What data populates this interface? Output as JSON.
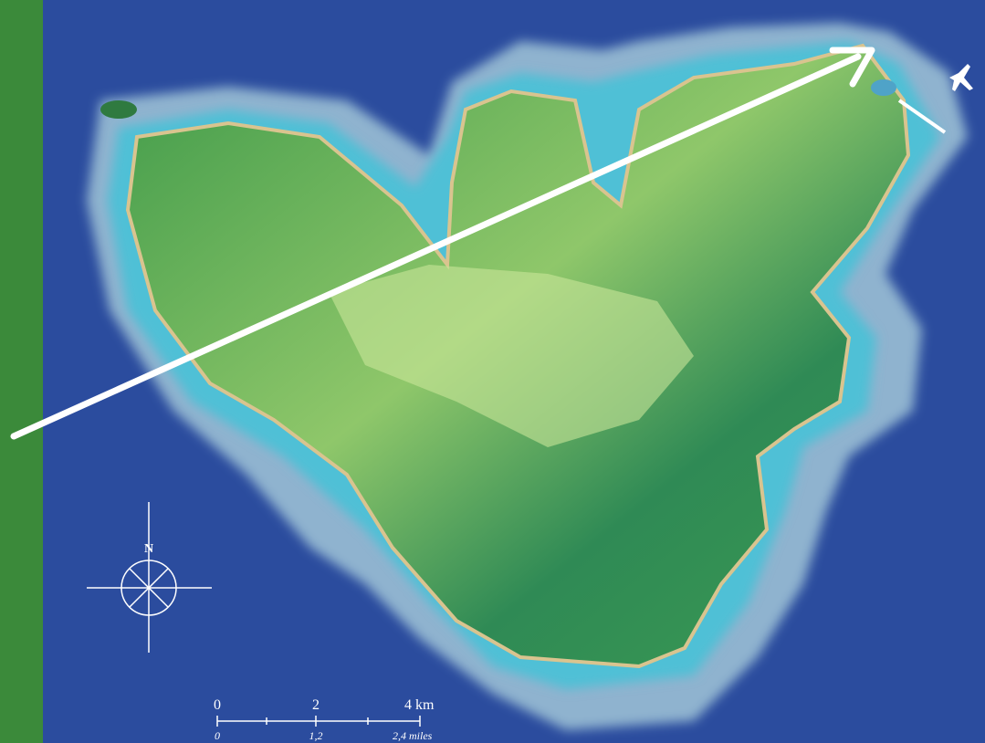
{
  "compass": {
    "label": "N"
  },
  "scale": {
    "km_labels": [
      "0",
      "2",
      "4 km"
    ],
    "mile_labels": [
      "0",
      "1,2",
      "2,4 miles"
    ]
  }
}
